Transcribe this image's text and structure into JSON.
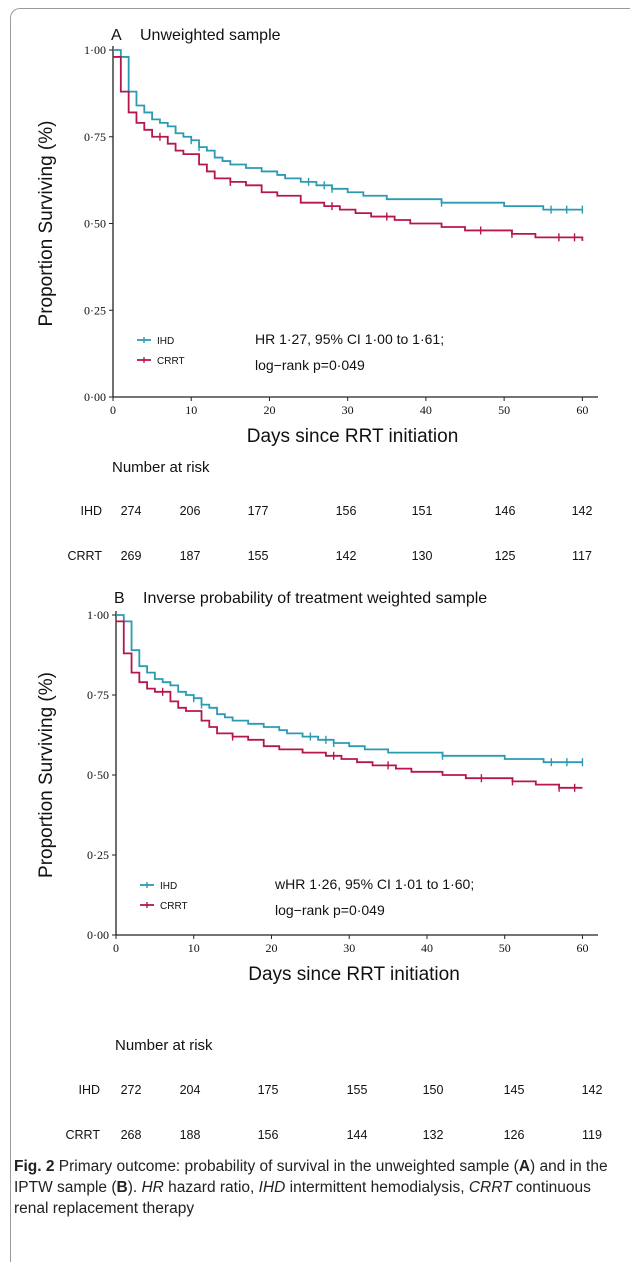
{
  "chart_data": [
    {
      "type": "line",
      "panel_label": "A",
      "title": "Unweighted sample",
      "xlabel": "Days since RRT initiation",
      "ylabel": "Proportion Surviving (%)",
      "xlim": [
        0,
        62
      ],
      "ylim": [
        0,
        1
      ],
      "xticks": [
        "0",
        "10",
        "20",
        "30",
        "40",
        "50",
        "60"
      ],
      "yticks": [
        "0·00",
        "0·25",
        "0·50",
        "0·75",
        "1·00"
      ],
      "legend_position": "bottom-left",
      "stat_line1": "HR 1·27, 95% CI 1·00 to 1·61;",
      "stat_line2": "log−rank p=0·049",
      "series": [
        {
          "name": "IHD",
          "color": "#2a9bb3",
          "x": [
            0,
            1,
            2,
            3,
            4,
            5,
            6,
            7,
            8,
            9,
            10,
            11,
            12,
            13,
            14,
            15,
            17,
            19,
            21,
            22,
            24,
            26,
            28,
            30,
            32,
            35,
            38,
            42,
            46,
            50,
            55,
            60
          ],
          "y": [
            1.0,
            0.98,
            0.88,
            0.84,
            0.82,
            0.8,
            0.79,
            0.78,
            0.76,
            0.75,
            0.74,
            0.72,
            0.71,
            0.69,
            0.68,
            0.67,
            0.66,
            0.65,
            0.64,
            0.63,
            0.62,
            0.61,
            0.6,
            0.59,
            0.58,
            0.57,
            0.57,
            0.56,
            0.56,
            0.55,
            0.54,
            0.54
          ],
          "censor_x": [
            10,
            11,
            25,
            27,
            28,
            42,
            56,
            58,
            60
          ]
        },
        {
          "name": "CRRT",
          "color": "#b5174d",
          "x": [
            0,
            1,
            2,
            3,
            4,
            5,
            7,
            8,
            9,
            11,
            12,
            13,
            15,
            17,
            19,
            21,
            24,
            27,
            29,
            31,
            33,
            36,
            38,
            42,
            45,
            48,
            51,
            54,
            57,
            60
          ],
          "y": [
            0.98,
            0.88,
            0.82,
            0.79,
            0.77,
            0.75,
            0.73,
            0.71,
            0.7,
            0.67,
            0.65,
            0.63,
            0.62,
            0.61,
            0.59,
            0.58,
            0.56,
            0.55,
            0.54,
            0.53,
            0.52,
            0.51,
            0.5,
            0.49,
            0.48,
            0.48,
            0.47,
            0.46,
            0.46,
            0.45
          ],
          "censor_x": [
            6,
            15,
            28,
            35,
            47,
            51,
            57,
            59
          ]
        }
      ],
      "risk_table": {
        "title": "Number at risk",
        "times": [
          0,
          10,
          20,
          30,
          40,
          50,
          60
        ],
        "rows": [
          {
            "label": "IHD",
            "values": [
              "274",
              "206",
              "177",
              "156",
              "151",
              "146",
              "142"
            ]
          },
          {
            "label": "CRRT",
            "values": [
              "269",
              "187",
              "155",
              "142",
              "130",
              "125",
              "117"
            ]
          }
        ]
      }
    },
    {
      "type": "line",
      "panel_label": "B",
      "title": "Inverse probability of treatment weighted sample",
      "xlabel": "Days since RRT initiation",
      "ylabel": "Proportion Surviving (%)",
      "xlim": [
        0,
        62
      ],
      "ylim": [
        0,
        1
      ],
      "xticks": [
        "0",
        "10",
        "20",
        "30",
        "40",
        "50",
        "60"
      ],
      "yticks": [
        "0·00",
        "0·25",
        "0·50",
        "0·75",
        "1·00"
      ],
      "legend_position": "bottom-left",
      "stat_line1": "wHR 1·26, 95% CI 1·01 to 1·60;",
      "stat_line2": "log−rank p=0·049",
      "series": [
        {
          "name": "IHD",
          "color": "#2a9bb3",
          "x": [
            0,
            1,
            2,
            3,
            4,
            5,
            6,
            7,
            8,
            9,
            10,
            11,
            12,
            13,
            14,
            15,
            17,
            19,
            21,
            22,
            24,
            26,
            28,
            30,
            32,
            35,
            38,
            42,
            46,
            50,
            55,
            60
          ],
          "y": [
            1.0,
            0.98,
            0.89,
            0.84,
            0.82,
            0.8,
            0.79,
            0.78,
            0.76,
            0.75,
            0.74,
            0.72,
            0.71,
            0.69,
            0.68,
            0.67,
            0.66,
            0.65,
            0.64,
            0.63,
            0.62,
            0.61,
            0.6,
            0.59,
            0.58,
            0.57,
            0.57,
            0.56,
            0.56,
            0.55,
            0.54,
            0.54
          ],
          "censor_x": [
            10,
            11,
            25,
            27,
            28,
            42,
            56,
            58,
            60
          ]
        },
        {
          "name": "CRRT",
          "color": "#b5174d",
          "x": [
            0,
            1,
            2,
            3,
            4,
            5,
            7,
            8,
            9,
            11,
            12,
            13,
            15,
            17,
            19,
            21,
            24,
            27,
            29,
            31,
            33,
            36,
            38,
            42,
            45,
            48,
            51,
            54,
            57,
            60
          ],
          "y": [
            0.98,
            0.88,
            0.82,
            0.79,
            0.77,
            0.76,
            0.73,
            0.71,
            0.7,
            0.67,
            0.65,
            0.63,
            0.62,
            0.61,
            0.59,
            0.58,
            0.57,
            0.56,
            0.55,
            0.54,
            0.53,
            0.52,
            0.51,
            0.5,
            0.49,
            0.49,
            0.48,
            0.47,
            0.46,
            0.46
          ],
          "censor_x": [
            6,
            15,
            28,
            35,
            47,
            51,
            57,
            59
          ]
        }
      ],
      "risk_table": {
        "title": "Number at risk",
        "times": [
          0,
          10,
          20,
          30,
          40,
          50,
          60
        ],
        "rows": [
          {
            "label": "IHD",
            "values": [
              "272",
              "204",
              "175",
              "155",
              "150",
              "145",
              "142"
            ]
          },
          {
            "label": "CRRT",
            "values": [
              "268",
              "188",
              "156",
              "144",
              "132",
              "126",
              "119"
            ]
          }
        ]
      }
    }
  ],
  "caption": {
    "fig_label": "Fig. 2",
    "text_parts": [
      "  Primary outcome: probability of survival in the unweighted sample (",
      "A",
      ") and in the IPTW sample (",
      "B",
      "). ",
      "HR",
      " hazard ratio, ",
      "IHD",
      " intermittent hemodialysis, ",
      "CRRT",
      " continuous renal replacement therapy"
    ]
  }
}
